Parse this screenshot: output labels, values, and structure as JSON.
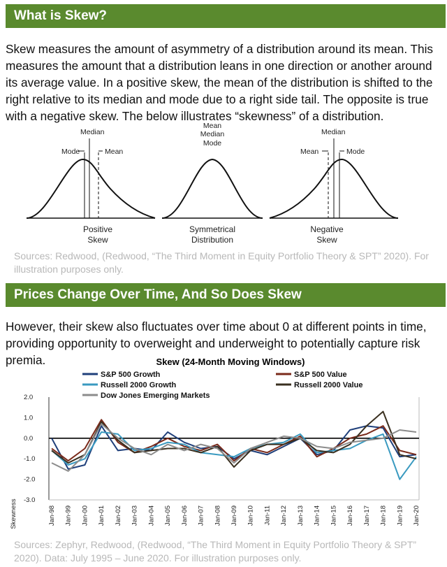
{
  "section1": {
    "title": "What is Skew?",
    "paragraph": "Skew measures the amount of asymmetry of a distribution around its mean. This measures the amount that a distribution leans in one direction or another around its average value. In a positive skew, the mean of the distribution is shifted to the right relative to its median and mode due to a right side tail. The opposite is true with a negative skew. The below illustrates “skewness” of a distribution.",
    "source": "Sources: Redwood, (Redwood, “The Third Moment in Equity Portfolio Theory & SPT” 2020). For illustration purposes only."
  },
  "diagram": {
    "positive": {
      "mode": "Mode",
      "median": "Median",
      "mean": "Mean",
      "caption1": "Positive",
      "caption2": "Skew"
    },
    "symmetrical": {
      "mean": "Mean",
      "median": "Median",
      "mode": "Mode",
      "caption1": "Symmetrical",
      "caption2": "Distribution"
    },
    "negative": {
      "mean": "Mean",
      "median": "Median",
      "mode": "Mode",
      "caption1": "Negative",
      "caption2": "Skew"
    }
  },
  "section2": {
    "title": "Prices Change Over Time, And So Does Skew",
    "paragraph": "However, their skew also fluctuates over time about 0 at different points in time, providing opportunity to overweight and underweight to potentially capture risk premia.",
    "source": "Sources: Zephyr, Redwood, (Redwood, “The Third Moment in Equity Portfolio Theory & SPT” 2020). Data: July 1995 – June 2020. For illustration purposes only."
  },
  "chart_data": {
    "type": "line",
    "title": "Skew (24-Month Moving Windows)",
    "ylabel": "Skewness",
    "xlabel": "",
    "ylim": [
      -3.0,
      2.0
    ],
    "yticks": [
      "2.0",
      "1.0",
      "0.0",
      "-1.0",
      "-2.0",
      "-3.0"
    ],
    "categories": [
      "Jan-98",
      "Jan-99",
      "Jan-00",
      "Jan-01",
      "Jan-02",
      "Jan-03",
      "Jan-04",
      "Jan-05",
      "Jan-06",
      "Jan-07",
      "Jan-08",
      "Jan-09",
      "Jan-10",
      "Jan-11",
      "Jan-12",
      "Jan-13",
      "Jan-14",
      "Jan-15",
      "Jan-16",
      "Jan-17",
      "Jan-18",
      "Jan-19",
      "Jan-20"
    ],
    "legend_placement": "top",
    "grid": false,
    "series": [
      {
        "name": "S&P 500 Growth",
        "color": "#1f3f7a",
        "values": [
          0.0,
          -1.5,
          -1.3,
          0.6,
          -0.6,
          -0.5,
          -0.6,
          0.3,
          -0.2,
          -0.5,
          -0.4,
          -1.0,
          -0.6,
          -0.8,
          -0.4,
          0.0,
          -0.8,
          -0.6,
          0.4,
          0.6,
          0.5,
          -0.9,
          -0.8
        ]
      },
      {
        "name": "S&P 500 Value",
        "color": "#7a2a1a",
        "values": [
          -0.5,
          -1.1,
          -0.5,
          0.9,
          -0.2,
          -0.7,
          -0.4,
          0.0,
          -0.4,
          -0.6,
          -0.3,
          -1.1,
          -0.5,
          -0.7,
          -0.3,
          0.1,
          -0.9,
          -0.5,
          0.0,
          0.2,
          0.6,
          -0.6,
          -0.8
        ]
      },
      {
        "name": "Russell 2000 Growth",
        "color": "#3a9ac0",
        "values": [
          -0.6,
          -1.3,
          -1.0,
          0.3,
          0.2,
          -0.6,
          -0.5,
          -0.2,
          -0.3,
          -0.7,
          -0.8,
          -0.9,
          -0.5,
          -0.3,
          -0.2,
          0.2,
          -0.7,
          -0.6,
          -0.5,
          -0.1,
          0.2,
          -2.0,
          -0.9
        ]
      },
      {
        "name": "Russell 2000 Value",
        "color": "#3a3020",
        "values": [
          -0.6,
          -1.2,
          -0.8,
          0.8,
          -0.1,
          -0.7,
          -0.6,
          -0.5,
          -0.5,
          -0.7,
          -0.4,
          -1.4,
          -0.6,
          -0.3,
          -0.3,
          0.0,
          -0.6,
          -0.7,
          -0.3,
          0.6,
          1.3,
          -0.8,
          -1.0
        ]
      },
      {
        "name": "Dow Jones Emerging Markets",
        "color": "#8c8c8c",
        "values": [
          -1.2,
          -1.6,
          -0.8,
          0.7,
          0.0,
          -0.5,
          -0.8,
          -0.3,
          -0.6,
          -0.3,
          -0.5,
          -1.2,
          -0.5,
          -0.2,
          0.1,
          0.0,
          -0.4,
          -0.5,
          -0.2,
          -0.1,
          0.0,
          0.4,
          0.3
        ]
      }
    ]
  }
}
